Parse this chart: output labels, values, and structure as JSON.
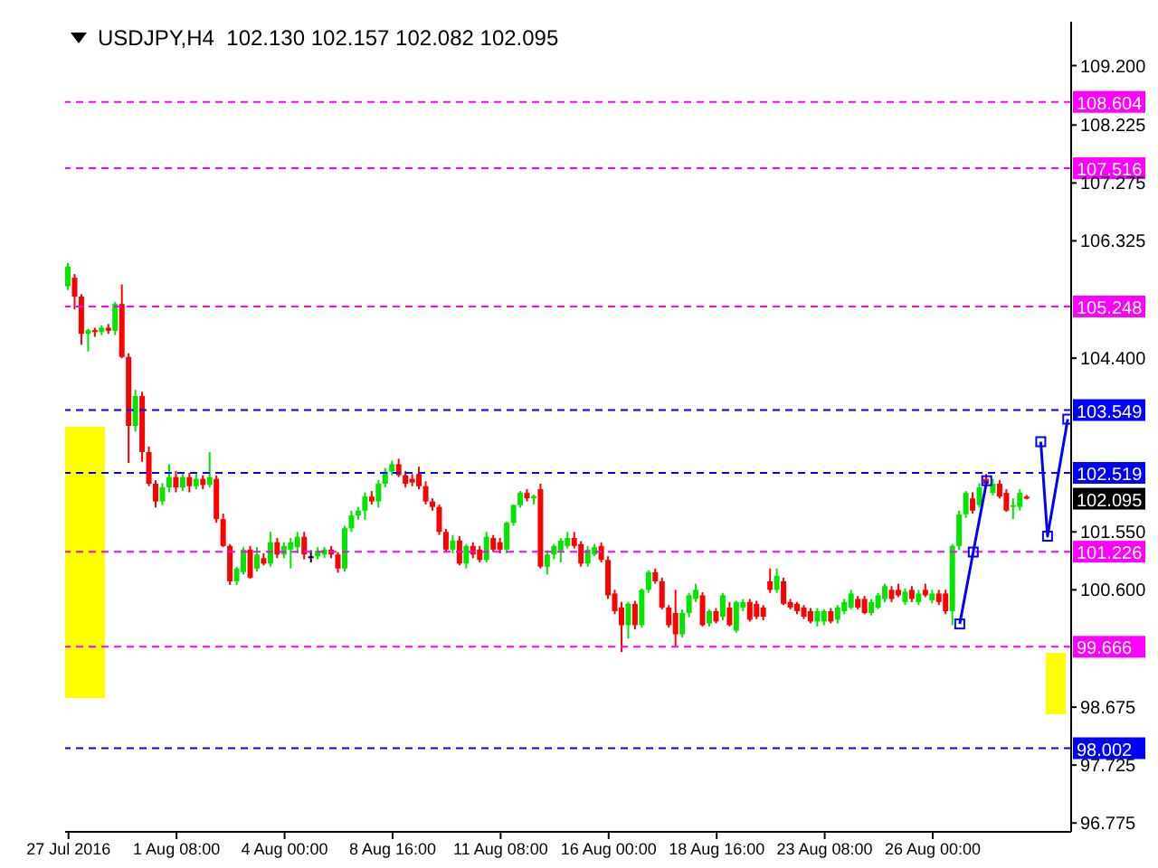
{
  "chart_data": {
    "type": "candlestick",
    "title": "USDJPY,H4  102.130 102.157 102.082 102.095",
    "categories": [
      "27 Jul 2016",
      null,
      null,
      null,
      null,
      null,
      null,
      null,
      null,
      null,
      null,
      null,
      null,
      null,
      null,
      null,
      "1 Aug 08:00",
      null,
      null,
      null,
      null,
      null,
      null,
      null,
      null,
      null,
      null,
      null,
      null,
      null,
      null,
      null,
      "4 Aug 00:00",
      null,
      null,
      null,
      null,
      null,
      null,
      null,
      null,
      null,
      null,
      null,
      null,
      null,
      null,
      null,
      "8 Aug 16:00",
      null,
      null,
      null,
      null,
      null,
      null,
      null,
      null,
      null,
      null,
      null,
      null,
      null,
      null,
      null,
      "11 Aug 08:00",
      null,
      null,
      null,
      null,
      null,
      null,
      null,
      null,
      null,
      null,
      null,
      null,
      null,
      null,
      null,
      "16 Aug 00:00",
      null,
      null,
      null,
      null,
      null,
      null,
      null,
      null,
      null,
      null,
      null,
      null,
      null,
      null,
      null,
      "18 Aug 16:00",
      null,
      null,
      null,
      null,
      null,
      null,
      null,
      null,
      null,
      null,
      null,
      null,
      null,
      null,
      null,
      "23 Aug 08:00",
      null,
      null,
      null,
      null,
      null,
      null,
      null,
      null,
      null,
      null,
      null,
      null,
      null,
      null,
      null,
      "26 Aug 00:00",
      null,
      null,
      null,
      null,
      null,
      null,
      null,
      null,
      null,
      null,
      null,
      null,
      null,
      null,
      null,
      null,
      null,
      null,
      null,
      null
    ],
    "ohlc": [
      [
        105.58,
        105.96,
        105.52,
        105.9
      ],
      [
        105.72,
        105.78,
        105.2,
        105.41
      ],
      [
        105.41,
        105.45,
        104.62,
        104.8
      ],
      [
        104.8,
        104.88,
        104.51,
        104.86
      ],
      [
        104.86,
        104.9,
        104.75,
        104.83
      ],
      [
        104.83,
        104.94,
        104.78,
        104.9
      ],
      [
        104.9,
        104.96,
        104.8,
        104.85
      ],
      [
        104.85,
        105.32,
        104.78,
        105.29
      ],
      [
        105.29,
        105.61,
        104.4,
        104.42
      ],
      [
        104.42,
        104.48,
        102.68,
        103.29
      ],
      [
        103.29,
        103.88,
        103.2,
        103.78
      ],
      [
        103.78,
        103.85,
        102.7,
        102.86
      ],
      [
        102.86,
        102.95,
        102.3,
        102.34
      ],
      [
        102.34,
        102.4,
        101.95,
        102.05
      ],
      [
        102.05,
        102.35,
        101.99,
        102.28
      ],
      [
        102.28,
        102.66,
        102.2,
        102.45
      ],
      [
        102.45,
        102.55,
        102.2,
        102.28
      ],
      [
        102.28,
        102.5,
        102.22,
        102.45
      ],
      [
        102.45,
        102.52,
        102.2,
        102.3
      ],
      [
        102.3,
        102.5,
        102.25,
        102.42
      ],
      [
        102.42,
        102.48,
        102.25,
        102.32
      ],
      [
        102.32,
        102.86,
        102.28,
        102.45
      ],
      [
        102.42,
        102.48,
        101.7,
        101.76
      ],
      [
        101.76,
        101.85,
        101.3,
        101.32
      ],
      [
        101.32,
        101.35,
        100.68,
        100.74
      ],
      [
        100.74,
        100.98,
        100.68,
        100.95
      ],
      [
        100.89,
        101.3,
        100.85,
        101.26
      ],
      [
        101.26,
        101.32,
        100.78,
        100.8
      ],
      [
        100.95,
        101.3,
        100.9,
        101.18
      ],
      [
        101.12,
        101.2,
        101.0,
        101.03
      ],
      [
        101.03,
        101.55,
        100.98,
        101.38
      ],
      [
        101.38,
        101.45,
        101.12,
        101.18
      ],
      [
        101.18,
        101.38,
        101.12,
        101.32
      ],
      [
        101.26,
        101.45,
        100.95,
        101.38
      ],
      [
        101.3,
        101.55,
        101.2,
        101.47
      ],
      [
        101.47,
        101.55,
        101.1,
        101.18
      ],
      [
        101.15,
        101.25,
        101.05,
        101.15
      ],
      [
        101.15,
        101.3,
        101.1,
        101.24
      ],
      [
        101.18,
        101.3,
        101.12,
        101.26
      ],
      [
        101.26,
        101.32,
        101.12,
        101.18
      ],
      [
        101.18,
        101.22,
        100.88,
        100.95
      ],
      [
        100.95,
        101.65,
        100.9,
        101.61
      ],
      [
        101.61,
        101.9,
        101.55,
        101.82
      ],
      [
        101.82,
        101.96,
        101.75,
        101.9
      ],
      [
        101.9,
        102.2,
        101.75,
        102.13
      ],
      [
        102.13,
        102.22,
        102.0,
        102.05
      ],
      [
        102.05,
        102.4,
        101.95,
        102.34
      ],
      [
        102.34,
        102.6,
        102.28,
        102.54
      ],
      [
        102.54,
        102.72,
        102.48,
        102.66
      ],
      [
        102.66,
        102.75,
        102.45,
        102.48
      ],
      [
        102.48,
        102.55,
        102.28,
        102.34
      ],
      [
        102.42,
        102.5,
        102.3,
        102.36
      ],
      [
        102.5,
        102.62,
        102.25,
        102.3
      ],
      [
        102.3,
        102.38,
        102.0,
        102.05
      ],
      [
        102.05,
        102.1,
        101.9,
        101.96
      ],
      [
        101.96,
        102.0,
        101.5,
        101.55
      ],
      [
        101.55,
        101.6,
        101.22,
        101.26
      ],
      [
        101.26,
        101.5,
        101.2,
        101.41
      ],
      [
        101.41,
        101.48,
        101.0,
        101.03
      ],
      [
        101.03,
        101.35,
        100.95,
        101.32
      ],
      [
        101.32,
        101.38,
        101.12,
        101.18
      ],
      [
        101.26,
        101.32,
        101.05,
        101.09
      ],
      [
        101.09,
        101.55,
        101.05,
        101.47
      ],
      [
        101.45,
        101.5,
        101.22,
        101.26
      ],
      [
        101.38,
        101.45,
        101.2,
        101.26
      ],
      [
        101.26,
        101.72,
        101.2,
        101.7
      ],
      [
        101.7,
        102.0,
        101.65,
        101.99
      ],
      [
        101.99,
        102.22,
        101.95,
        102.19
      ],
      [
        102.19,
        102.25,
        102.05,
        102.1
      ],
      [
        102.1,
        102.16,
        102.0,
        102.14
      ],
      [
        102.25,
        102.34,
        100.95,
        100.98
      ],
      [
        100.98,
        101.25,
        100.85,
        101.18
      ],
      [
        101.18,
        101.35,
        101.1,
        101.32
      ],
      [
        101.24,
        101.45,
        101.05,
        101.41
      ],
      [
        101.32,
        101.55,
        101.28,
        101.45
      ],
      [
        101.45,
        101.55,
        101.28,
        101.32
      ],
      [
        101.35,
        101.4,
        100.98,
        101.03
      ],
      [
        101.03,
        101.32,
        100.98,
        101.26
      ],
      [
        101.18,
        101.35,
        101.15,
        101.3
      ],
      [
        101.32,
        101.38,
        101.05,
        101.09
      ],
      [
        101.09,
        101.15,
        100.45,
        100.51
      ],
      [
        100.54,
        100.6,
        100.2,
        100.25
      ],
      [
        100.31,
        100.4,
        99.58,
        100.02
      ],
      [
        100.02,
        100.4,
        99.8,
        100.37
      ],
      [
        100.37,
        100.42,
        99.95,
        100.02
      ],
      [
        100.02,
        100.62,
        99.98,
        100.6
      ],
      [
        100.6,
        100.92,
        100.55,
        100.89
      ],
      [
        100.89,
        100.95,
        100.7,
        100.74
      ],
      [
        100.74,
        100.8,
        100.28,
        100.31
      ],
      [
        100.31,
        100.35,
        99.98,
        100.02
      ],
      [
        100.22,
        100.6,
        99.67,
        99.87
      ],
      [
        99.87,
        100.28,
        99.82,
        100.22
      ],
      [
        100.22,
        100.55,
        100.15,
        100.51
      ],
      [
        100.45,
        100.7,
        100.4,
        100.6
      ],
      [
        100.51,
        100.56,
        100.0,
        100.02
      ],
      [
        100.05,
        100.28,
        100.0,
        100.25
      ],
      [
        100.25,
        100.3,
        100.05,
        100.08
      ],
      [
        100.16,
        100.55,
        100.1,
        100.51
      ],
      [
        100.31,
        100.4,
        100.0,
        100.02
      ],
      [
        99.93,
        100.42,
        99.9,
        100.4
      ],
      [
        100.31,
        100.45,
        100.25,
        100.4
      ],
      [
        100.4,
        100.45,
        100.08,
        100.11
      ],
      [
        100.37,
        100.42,
        100.12,
        100.16
      ],
      [
        100.31,
        100.35,
        100.1,
        100.16
      ],
      [
        100.74,
        100.95,
        100.55,
        100.6
      ],
      [
        100.6,
        100.95,
        100.55,
        100.83
      ],
      [
        100.74,
        100.8,
        100.35,
        100.37
      ],
      [
        100.4,
        100.45,
        100.28,
        100.31
      ],
      [
        100.37,
        100.4,
        100.2,
        100.25
      ],
      [
        100.31,
        100.35,
        100.12,
        100.16
      ],
      [
        100.25,
        100.3,
        100.05,
        100.08
      ],
      [
        100.08,
        100.3,
        100.0,
        100.25
      ],
      [
        100.08,
        100.28,
        100.02,
        100.25
      ],
      [
        100.25,
        100.3,
        100.05,
        100.08
      ],
      [
        100.11,
        100.35,
        100.05,
        100.31
      ],
      [
        100.25,
        100.45,
        100.2,
        100.4
      ],
      [
        100.31,
        100.6,
        100.28,
        100.54
      ],
      [
        100.45,
        100.5,
        100.28,
        100.31
      ],
      [
        100.45,
        100.5,
        100.2,
        100.22
      ],
      [
        100.22,
        100.45,
        100.18,
        100.4
      ],
      [
        100.31,
        100.55,
        100.28,
        100.51
      ],
      [
        100.45,
        100.7,
        100.4,
        100.66
      ],
      [
        100.6,
        100.66,
        100.4,
        100.45
      ],
      [
        100.6,
        100.7,
        100.48,
        100.51
      ],
      [
        100.4,
        100.62,
        100.35,
        100.57
      ],
      [
        100.6,
        100.66,
        100.4,
        100.45
      ],
      [
        100.4,
        100.6,
        100.35,
        100.54
      ],
      [
        100.6,
        100.7,
        100.48,
        100.51
      ],
      [
        100.43,
        100.6,
        100.38,
        100.54
      ],
      [
        100.54,
        100.6,
        100.35,
        100.4
      ],
      [
        100.54,
        100.6,
        100.2,
        100.25
      ],
      [
        100.25,
        101.35,
        100.02,
        101.32
      ],
      [
        101.32,
        101.9,
        101.25,
        101.84
      ],
      [
        101.84,
        102.22,
        101.78,
        102.19
      ],
      [
        102.1,
        102.2,
        101.85,
        101.9
      ],
      [
        101.99,
        102.35,
        101.95,
        102.28
      ],
      [
        102.42,
        102.5,
        102.3,
        102.34
      ],
      [
        102.19,
        102.42,
        102.15,
        102.34
      ],
      [
        102.34,
        102.4,
        102.1,
        102.13
      ],
      [
        102.19,
        102.25,
        101.88,
        101.9
      ],
      [
        101.96,
        102.1,
        101.76,
        101.99
      ],
      [
        101.96,
        102.25,
        101.9,
        102.19
      ],
      [
        102.13,
        102.157,
        102.082,
        102.095
      ],
      null,
      null,
      null,
      null,
      null,
      null
    ],
    "series": [
      {
        "type": "line",
        "color": "#0000ff",
        "marker": "square",
        "values": [
          null,
          null,
          null,
          null,
          null,
          null,
          null,
          null,
          null,
          null,
          null,
          null,
          null,
          null,
          null,
          null,
          null,
          null,
          null,
          null,
          null,
          null,
          null,
          null,
          null,
          null,
          null,
          null,
          null,
          null,
          null,
          null,
          null,
          null,
          null,
          null,
          null,
          null,
          null,
          null,
          null,
          null,
          null,
          null,
          null,
          null,
          null,
          null,
          null,
          null,
          null,
          null,
          null,
          null,
          null,
          null,
          null,
          null,
          null,
          null,
          null,
          null,
          null,
          null,
          null,
          null,
          null,
          null,
          null,
          null,
          null,
          null,
          null,
          null,
          null,
          null,
          null,
          null,
          null,
          null,
          null,
          null,
          null,
          null,
          null,
          null,
          null,
          null,
          null,
          null,
          null,
          null,
          null,
          null,
          null,
          null,
          null,
          null,
          null,
          null,
          null,
          null,
          null,
          null,
          null,
          null,
          null,
          null,
          null,
          null,
          null,
          null,
          null,
          null,
          null,
          null,
          null,
          null,
          null,
          null,
          null,
          null,
          null,
          null,
          null,
          null,
          null,
          null,
          null,
          null,
          null,
          null,
          100.04,
          null,
          101.22,
          null,
          102.39,
          null,
          null,
          null,
          null,
          null,
          null,
          null,
          null,
          null,
          null,
          null,
          null
        ]
      },
      {
        "type": "line",
        "color": "#0000ff",
        "marker": "square",
        "values": [
          null,
          null,
          null,
          null,
          null,
          null,
          null,
          null,
          null,
          null,
          null,
          null,
          null,
          null,
          null,
          null,
          null,
          null,
          null,
          null,
          null,
          null,
          null,
          null,
          null,
          null,
          null,
          null,
          null,
          null,
          null,
          null,
          null,
          null,
          null,
          null,
          null,
          null,
          null,
          null,
          null,
          null,
          null,
          null,
          null,
          null,
          null,
          null,
          null,
          null,
          null,
          null,
          null,
          null,
          null,
          null,
          null,
          null,
          null,
          null,
          null,
          null,
          null,
          null,
          null,
          null,
          null,
          null,
          null,
          null,
          null,
          null,
          null,
          null,
          null,
          null,
          null,
          null,
          null,
          null,
          null,
          null,
          null,
          null,
          null,
          null,
          null,
          null,
          null,
          null,
          null,
          null,
          null,
          null,
          null,
          null,
          null,
          null,
          null,
          null,
          null,
          null,
          null,
          null,
          null,
          null,
          null,
          null,
          null,
          null,
          null,
          null,
          null,
          null,
          null,
          null,
          null,
          null,
          null,
          null,
          null,
          null,
          null,
          null,
          null,
          null,
          null,
          null,
          null,
          null,
          null,
          null,
          null,
          null,
          null,
          null,
          null,
          null,
          null,
          null,
          null,
          null,
          null,
          null,
          103.03,
          101.48,
          null,
          null,
          103.4
        ]
      }
    ],
    "ylim": [
      96.63,
      109.92
    ],
    "yticks": [
      {
        "value": 109.2,
        "label": "109.200"
      },
      {
        "value": 108.225,
        "label": "108.225"
      },
      {
        "value": 107.275,
        "label": "107.275"
      },
      {
        "value": 106.325,
        "label": "106.325"
      },
      {
        "value": 104.4,
        "label": "104.400"
      },
      {
        "value": 101.55,
        "label": "101.550"
      },
      {
        "value": 100.6,
        "label": "100.600"
      },
      {
        "value": 98.675,
        "label": "98.675"
      },
      {
        "value": 97.725,
        "label": "97.725"
      },
      {
        "value": 96.775,
        "label": "96.775"
      }
    ],
    "ref_lines": [
      {
        "axis": "y",
        "value": 108.604,
        "label": "108.604",
        "color": "#ff00ff",
        "line_style": "dashed"
      },
      {
        "axis": "y",
        "value": 107.516,
        "label": "107.516",
        "color": "#ff00ff",
        "line_style": "dashed"
      },
      {
        "axis": "y",
        "value": 105.248,
        "label": "105.248",
        "color": "#ff00ff",
        "line_style": "dashed"
      },
      {
        "axis": "y",
        "value": 103.549,
        "label": "103.549",
        "color": "#0000ff",
        "line_style": "dashed"
      },
      {
        "axis": "y",
        "value": 102.519,
        "label": "102.519",
        "color": "#0000ff",
        "line_style": "dashed"
      },
      {
        "axis": "y",
        "value": 101.226,
        "label": "101.226",
        "color": "#ff00ff",
        "line_style": "dashed"
      },
      {
        "axis": "y",
        "value": 99.666,
        "label": "99.666",
        "color": "#ff00ff",
        "line_style": "dashed"
      },
      {
        "axis": "y",
        "value": 98.002,
        "label": "98.002",
        "color": "#0000ff",
        "line_style": "dashed"
      }
    ],
    "annotations": [
      {
        "text": "102.095",
        "y": 102.095
      }
    ],
    "legend": false,
    "grid": false
  }
}
